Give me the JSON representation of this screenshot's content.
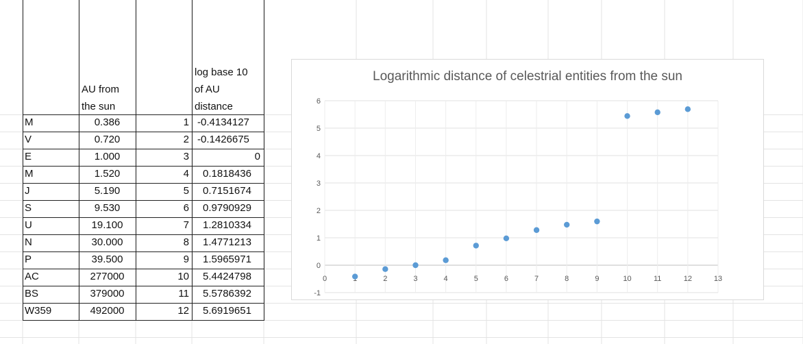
{
  "table": {
    "headers": {
      "au_line1": "AU from",
      "au_line2": "the sun",
      "log_line1": "log base 10",
      "log_line2": "of AU",
      "log_line3": "distance"
    },
    "rows": [
      {
        "name": "M",
        "au": "0.386",
        "idx": "1",
        "log": "-0.4134127"
      },
      {
        "name": "V",
        "au": "0.720",
        "idx": "2",
        "log": "-0.1426675"
      },
      {
        "name": "E",
        "au": "1.000",
        "idx": "3",
        "log": "0"
      },
      {
        "name": "M",
        "au": "1.520",
        "idx": "4",
        "log": "0.1818436"
      },
      {
        "name": "J",
        "au": "5.190",
        "idx": "5",
        "log": "0.7151674"
      },
      {
        "name": "S",
        "au": "9.530",
        "idx": "6",
        "log": "0.9790929"
      },
      {
        "name": "U",
        "au": "19.100",
        "idx": "7",
        "log": "1.2810334"
      },
      {
        "name": "N",
        "au": "30.000",
        "idx": "8",
        "log": "1.4771213"
      },
      {
        "name": "P",
        "au": "39.500",
        "idx": "9",
        "log": "1.5965971"
      },
      {
        "name": "AC",
        "au": "277000",
        "idx": "10",
        "log": "5.4424798"
      },
      {
        "name": "BS",
        "au": "379000",
        "idx": "11",
        "log": "5.5786392"
      },
      {
        "name": "W359",
        "au": "492000",
        "idx": "12",
        "log": "5.6919651"
      }
    ]
  },
  "chart_data": {
    "type": "scatter",
    "title": "Logarithmic distance of celestrial entities from the sun",
    "xlabel": "",
    "ylabel": "",
    "xlim": [
      0,
      13
    ],
    "ylim": [
      -1,
      6
    ],
    "x_ticks": [
      0,
      1,
      2,
      3,
      4,
      5,
      6,
      7,
      8,
      9,
      10,
      11,
      12,
      13
    ],
    "y_ticks": [
      -1,
      0,
      1,
      2,
      3,
      4,
      5,
      6
    ],
    "grid": true,
    "legend": "none",
    "marker_color": "#5b9bd5",
    "series": [
      {
        "x": [
          1,
          2,
          3,
          4,
          5,
          6,
          7,
          8,
          9,
          10,
          11,
          12
        ],
        "y": [
          -0.4134127,
          -0.1426675,
          0,
          0.1818436,
          0.7151674,
          0.9790929,
          1.2810334,
          1.4771213,
          1.5965971,
          5.4424798,
          5.5786392,
          5.6919651
        ]
      }
    ]
  }
}
